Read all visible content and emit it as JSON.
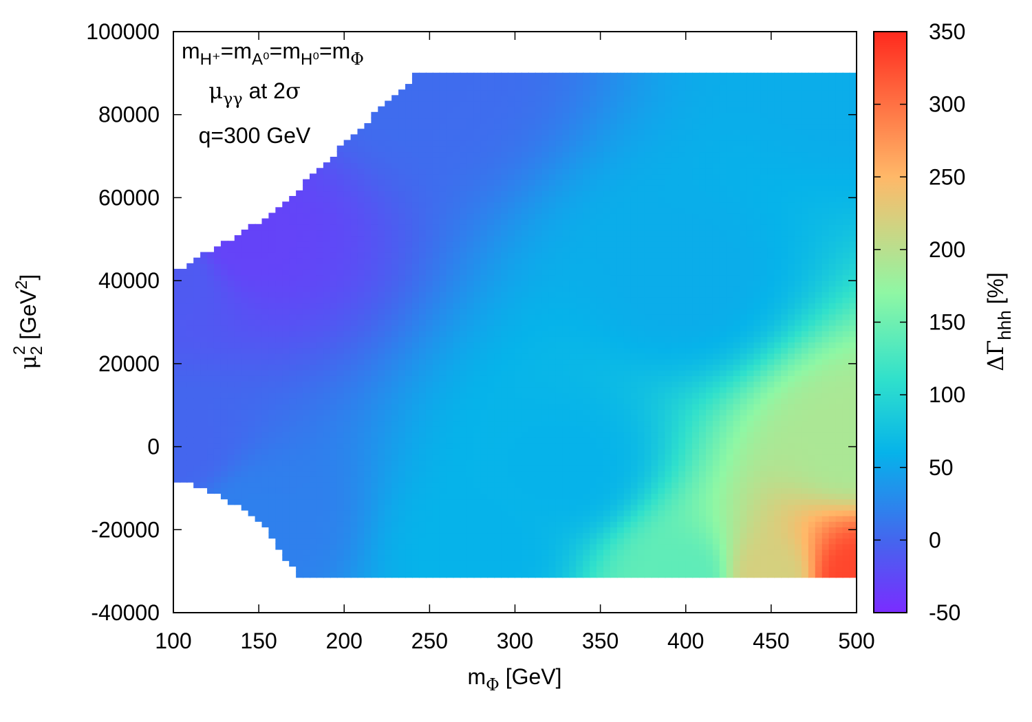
{
  "chart_data": {
    "type": "heatmap",
    "title": "",
    "xlabel": {
      "main": "m",
      "sub": "Φ",
      "unit": " [GeV]"
    },
    "ylabel": {
      "main": "μ",
      "sub": "2",
      "sup": "2",
      "unit_pre": " [GeV",
      "unit_sup": "2",
      "unit_post": "]"
    },
    "colorbar_label": {
      "main": "ΔΓ",
      "sub": "hhh",
      "unit": " [%]"
    },
    "xlim": [
      100,
      500
    ],
    "ylim": [
      -40000,
      100000
    ],
    "zlim": [
      -50,
      350
    ],
    "x_ticks": [
      100,
      150,
      200,
      250,
      300,
      350,
      400,
      450,
      500
    ],
    "y_ticks": [
      -40000,
      -20000,
      0,
      20000,
      40000,
      60000,
      80000,
      100000
    ],
    "z_ticks": [
      -50,
      0,
      50,
      100,
      150,
      200,
      250,
      300,
      350
    ],
    "colormap": [
      "#7a2cff",
      "#4466ee",
      "#06b3ea",
      "#2fe0cc",
      "#8ff7a4",
      "#ffb868",
      "#ff2a1e"
    ],
    "colormap_stops": [
      -50,
      0,
      60,
      110,
      170,
      250,
      350
    ],
    "grid": false,
    "annotations": [
      {
        "parts": [
          [
            "m",
            ""
          ],
          [
            "H⁺",
            "sub"
          ],
          [
            "=m",
            ""
          ],
          [
            "A⁰",
            "sub"
          ],
          [
            "=m",
            ""
          ],
          [
            "H⁰",
            "sub"
          ],
          [
            "=m",
            ""
          ],
          [
            "Φ",
            "subgreek"
          ]
        ]
      },
      {
        "parts": [
          [
            "μ",
            "greek"
          ],
          [
            "γγ",
            "subgreek"
          ],
          [
            " at 2",
            ""
          ],
          [
            "σ",
            "greek"
          ]
        ]
      },
      {
        "parts": [
          [
            "q=300 GeV",
            ""
          ]
        ]
      }
    ],
    "region_boundary": {
      "upper": [
        [
          100,
          41000
        ],
        [
          105,
          42500
        ],
        [
          120,
          46000
        ],
        [
          140,
          50500
        ],
        [
          160,
          56500
        ],
        [
          175,
          62000
        ],
        [
          190,
          68000
        ],
        [
          210,
          76000
        ],
        [
          230,
          84000
        ],
        [
          245,
          90000
        ],
        [
          500,
          90000
        ]
      ],
      "lower": [
        [
          100,
          -7000
        ],
        [
          110,
          -8500
        ],
        [
          130,
          -11500
        ],
        [
          150,
          -17000
        ],
        [
          175,
          -31500
        ],
        [
          500,
          -31500
        ]
      ]
    },
    "value_samples": [
      {
        "x": 100,
        "y": 41000,
        "z": -10
      },
      {
        "x": 140,
        "y": 50000,
        "z": -30
      },
      {
        "x": 100,
        "y": 0,
        "z": 0
      },
      {
        "x": 150,
        "y": -17000,
        "z": 20
      },
      {
        "x": 245,
        "y": 90000,
        "z": 5
      },
      {
        "x": 500,
        "y": 90000,
        "z": 55
      },
      {
        "x": 400,
        "y": 40000,
        "z": 55
      },
      {
        "x": 330,
        "y": -5000,
        "z": 60
      },
      {
        "x": 280,
        "y": -25000,
        "z": 60
      },
      {
        "x": 400,
        "y": -31500,
        "z": 140
      },
      {
        "x": 450,
        "y": -31500,
        "z": 220
      },
      {
        "x": 500,
        "y": -31500,
        "z": 330
      },
      {
        "x": 500,
        "y": 0,
        "z": 190
      }
    ]
  }
}
